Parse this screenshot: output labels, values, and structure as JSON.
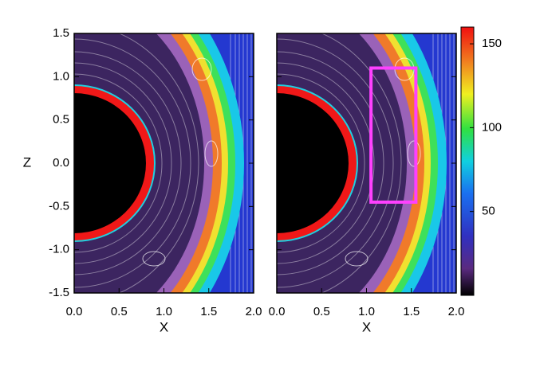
{
  "chart_data": [
    {
      "type": "heatmap",
      "xlabel": "X",
      "ylabel": "Z",
      "xlim": [
        0,
        2
      ],
      "ylim": [
        -1.5,
        1.5
      ],
      "xticks": [
        {
          "value": 0,
          "label": "0.0"
        },
        0.5,
        {
          "value": 1,
          "label": "1.0"
        },
        1.5,
        {
          "value": 2,
          "label": "2.0"
        }
      ],
      "yticks": [
        -1.5,
        {
          "value": -1,
          "label": "-1.0"
        },
        -0.5,
        {
          "value": 0,
          "label": "0.0"
        },
        0.5,
        {
          "value": 1,
          "label": "1.0"
        },
        1.5
      ]
    },
    {
      "type": "heatmap",
      "xlabel": "X",
      "xlim": [
        0,
        2
      ],
      "ylim": [
        -1.5,
        1.5
      ],
      "xticks": [
        {
          "value": 0,
          "label": "0.0"
        },
        0.5,
        {
          "value": 1,
          "label": "1.0"
        },
        1.5,
        {
          "value": 2,
          "label": "2.0"
        }
      ],
      "yticks": [
        -1.5,
        -1,
        -0.5,
        0,
        0.5,
        1,
        1.5
      ],
      "highlight_box": {
        "x": [
          1.05,
          1.55
        ],
        "z": [
          -0.45,
          1.1
        ],
        "color": "#ff40ff"
      },
      "colorbar": {
        "lim": [
          0,
          160
        ],
        "ticks": [
          50,
          100,
          150
        ]
      }
    }
  ]
}
